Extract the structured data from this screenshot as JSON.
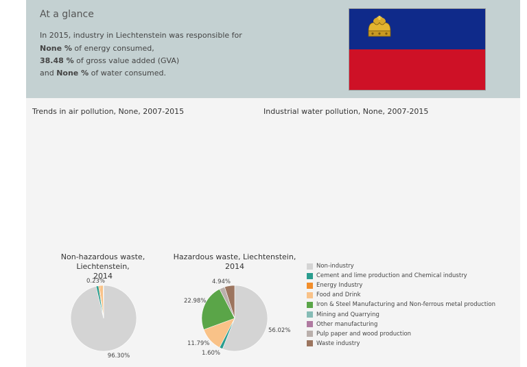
{
  "glance": {
    "title": "At a glance",
    "line1": "In 2015, industry in Liechtenstein was responsible for",
    "energy_value": "None %",
    "energy_text": " of energy consumed,",
    "gva_value": "38.48 %",
    "gva_text": " of gross value added (GVA)",
    "water_prefix": "and ",
    "water_value": "None %",
    "water_text": " of water consumed."
  },
  "flag": {
    "country": "Liechtenstein",
    "top_color": "#0f2a8a",
    "bottom_color": "#ce1126",
    "emblem": "crown-icon"
  },
  "titles": {
    "air": "Trends in air pollution, None, 2007-2015",
    "water": "Industrial water pollution, None, 2007-2015"
  },
  "chart_data": [
    {
      "type": "pie",
      "title": "Non-hazardous waste, Liechtenstein, 2014",
      "title_lines": [
        "Non-hazardous waste, Liechtenstein,",
        "2014"
      ],
      "slices": [
        {
          "category": "Non-industry",
          "value": 96.3,
          "label": "96.30%"
        },
        {
          "category": "Cement and lime production and Chemical industry",
          "value": 1.2,
          "label": ""
        },
        {
          "category": "Energy Industry",
          "value": 0.5,
          "label": ""
        },
        {
          "category": "Food and Drink",
          "value": 1.77,
          "label": ""
        },
        {
          "category": "Iron & Steel Manufacturing and Non-ferrous metal production",
          "value": 0.23,
          "label": "0.23%"
        }
      ]
    },
    {
      "type": "pie",
      "title": "Hazardous waste, Liechtenstein, 2014",
      "title_lines": [
        "Hazardous waste, Liechtenstein,",
        "2014"
      ],
      "slices": [
        {
          "category": "Non-industry",
          "value": 56.02,
          "label": "56.02%"
        },
        {
          "category": "Cement and lime production and Chemical industry",
          "value": 1.6,
          "label": "1.60%"
        },
        {
          "category": "Food and Drink",
          "value": 11.79,
          "label": "11.79%"
        },
        {
          "category": "Iron & Steel Manufacturing and Non-ferrous metal production",
          "value": 22.98,
          "label": "22.98%"
        },
        {
          "category": "Pulp paper and wood production",
          "value": 2.67,
          "label": ""
        },
        {
          "category": "Waste industry",
          "value": 4.94,
          "label": "4.94%"
        }
      ]
    }
  ],
  "legend": [
    {
      "label": "Non-industry",
      "color": "#d4d4d4"
    },
    {
      "label": "Cement and lime production and Chemical industry",
      "color": "#2a9d8f"
    },
    {
      "label": "Energy Industry",
      "color": "#f28e2b"
    },
    {
      "label": "Food and Drink",
      "color": "#f9c288"
    },
    {
      "label": "Iron & Steel Manufacturing and Non-ferrous metal production",
      "color": "#5aa548"
    },
    {
      "label": "Mining and Quarrying",
      "color": "#86bcb6"
    },
    {
      "label": "Other manufacturing",
      "color": "#b07aa1"
    },
    {
      "label": "Pulp paper and wood production",
      "color": "#bab0ac"
    },
    {
      "label": "Waste industry",
      "color": "#9c755f"
    }
  ]
}
